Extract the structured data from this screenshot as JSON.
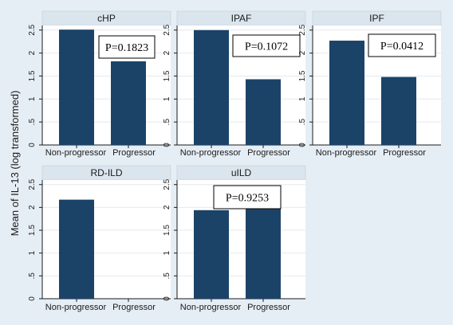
{
  "colors": {
    "background": "#e6eef5",
    "plot_background": "#ffffff",
    "strip": "#dbe5ee",
    "bar": "#1b4368",
    "grid": "#e4eaf0",
    "axis": "#1a1a1a"
  },
  "chart_data": {
    "type": "bar",
    "layout": "small-multiples-2x3",
    "ylabel": "Mean of IL-13 (log transformed)",
    "ylim": [
      0,
      2.6
    ],
    "yticks": [
      0,
      0.5,
      1,
      1.5,
      2,
      2.5
    ],
    "ytick_labels": [
      "0",
      ".5",
      "1",
      "1.5",
      "2",
      "2.5"
    ],
    "categories": [
      "Non-progressor",
      "Progressor"
    ],
    "grid": true,
    "panels": [
      {
        "title": "cHP",
        "values": [
          2.51,
          1.82
        ],
        "p_value": "P=0.1823"
      },
      {
        "title": "IPAF",
        "values": [
          2.5,
          1.43
        ],
        "p_value": "P=0.1072"
      },
      {
        "title": "IPF",
        "values": [
          2.27,
          1.48
        ],
        "p_value": "P=0.0412"
      },
      {
        "title": "RD-ILD",
        "values": [
          2.17,
          null
        ],
        "p_value": ""
      },
      {
        "title": "uILD",
        "values": [
          1.94,
          2.02
        ],
        "p_value": "P=0.9253"
      }
    ]
  }
}
